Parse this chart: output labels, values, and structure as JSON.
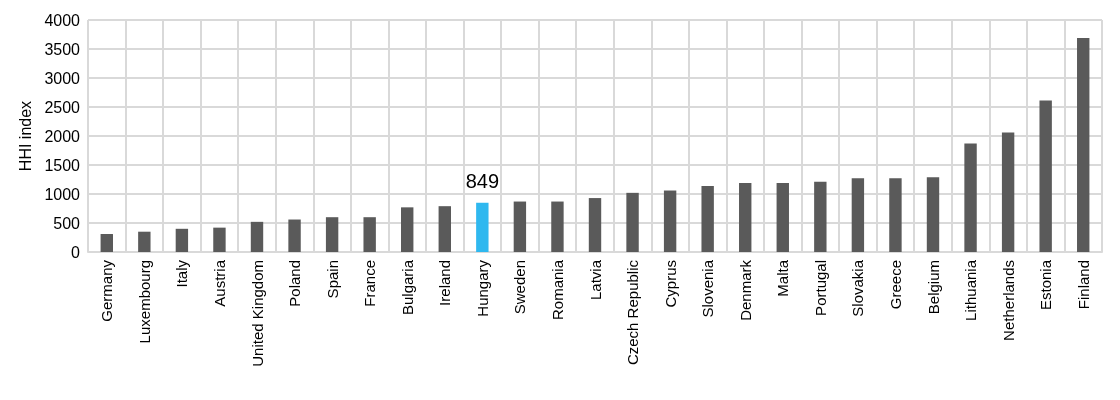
{
  "chart_data": {
    "type": "bar",
    "ylabel": "HHI index",
    "categories": [
      "Germany",
      "Luxembourg",
      "Italy",
      "Austria",
      "United Kingdom",
      "Poland",
      "Spain",
      "France",
      "Bulgaria",
      "Ireland",
      "Hungary",
      "Sweden",
      "Romania",
      "Latvia",
      "Czech Republic",
      "Cyprus",
      "Slovenia",
      "Denmark",
      "Malta",
      "Portugal",
      "Slovakia",
      "Greece",
      "Belgium",
      "Lithuania",
      "Netherlands",
      "Estonia",
      "Finland"
    ],
    "values": [
      310,
      350,
      400,
      420,
      520,
      560,
      600,
      600,
      770,
      790,
      849,
      870,
      870,
      930,
      1020,
      1060,
      1140,
      1190,
      1190,
      1210,
      1270,
      1270,
      1290,
      1870,
      2060,
      2610,
      3690
    ],
    "colors": [
      "#5a5a5a",
      "#5a5a5a",
      "#5a5a5a",
      "#5a5a5a",
      "#5a5a5a",
      "#5a5a5a",
      "#5a5a5a",
      "#5a5a5a",
      "#5a5a5a",
      "#5a5a5a",
      "#2fb8ef",
      "#5a5a5a",
      "#5a5a5a",
      "#5a5a5a",
      "#5a5a5a",
      "#5a5a5a",
      "#5a5a5a",
      "#5a5a5a",
      "#5a5a5a",
      "#5a5a5a",
      "#5a5a5a",
      "#5a5a5a",
      "#5a5a5a",
      "#5a5a5a",
      "#5a5a5a",
      "#5a5a5a",
      "#5a5a5a"
    ],
    "value_labels": [
      null,
      null,
      null,
      null,
      null,
      null,
      null,
      null,
      null,
      null,
      "849",
      null,
      null,
      null,
      null,
      null,
      null,
      null,
      null,
      null,
      null,
      null,
      null,
      null,
      null,
      null,
      null
    ],
    "ylim": [
      0,
      4000
    ],
    "yticks": [
      0,
      500,
      1000,
      1500,
      2000,
      2500,
      3000,
      3500,
      4000
    ],
    "grid": true
  }
}
